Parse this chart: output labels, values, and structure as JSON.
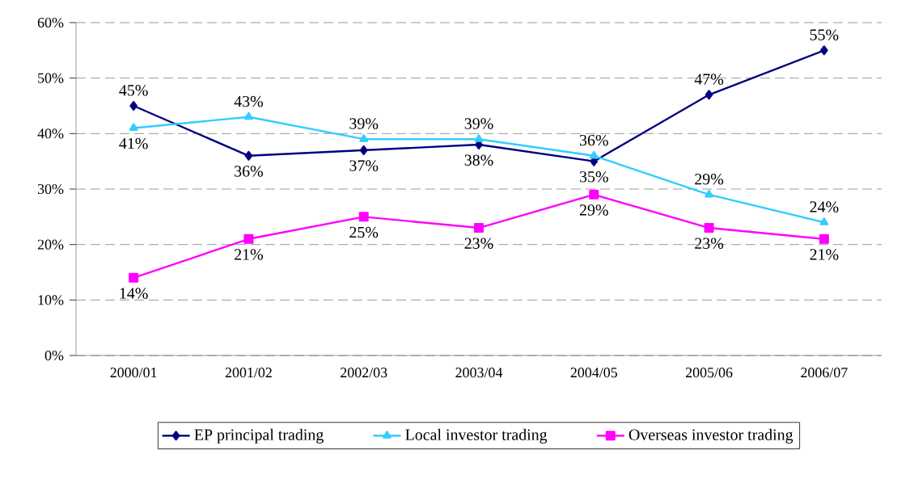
{
  "chart_data": {
    "type": "line",
    "categories": [
      "2000/01",
      "2001/02",
      "2002/03",
      "2003/04",
      "2004/05",
      "2005/06",
      "2006/07"
    ],
    "series": [
      {
        "name": "EP principal trading",
        "color": "#000080",
        "marker": "diamond",
        "values": [
          45,
          36,
          37,
          38,
          35,
          47,
          55
        ],
        "value_labels": [
          "45%",
          "36%",
          "37%",
          "38%",
          "35%",
          "47%",
          "55%"
        ]
      },
      {
        "name": "Local investor trading",
        "color": "#33ccff",
        "marker": "triangle",
        "values": [
          41,
          43,
          39,
          39,
          36,
          29,
          24
        ],
        "value_labels": [
          "41%",
          "43%",
          "39%",
          "39%",
          "36%",
          "29%",
          "24%"
        ]
      },
      {
        "name": "Overseas investor trading",
        "color": "#ff00ff",
        "marker": "square",
        "values": [
          14,
          21,
          25,
          23,
          29,
          23,
          21
        ],
        "value_labels": [
          "14%",
          "21%",
          "25%",
          "23%",
          "29%",
          "23%",
          "21%"
        ]
      }
    ],
    "ylim": [
      0,
      60
    ],
    "yticks": [
      {
        "value": 0,
        "label": "0%"
      },
      {
        "value": 10,
        "label": "10%"
      },
      {
        "value": 20,
        "label": "20%"
      },
      {
        "value": 30,
        "label": "30%"
      },
      {
        "value": 40,
        "label": "40%"
      },
      {
        "value": 50,
        "label": "50%"
      },
      {
        "value": 60,
        "label": "60%"
      }
    ],
    "grid": "y",
    "legend": "bottom",
    "line_style": "solid"
  }
}
